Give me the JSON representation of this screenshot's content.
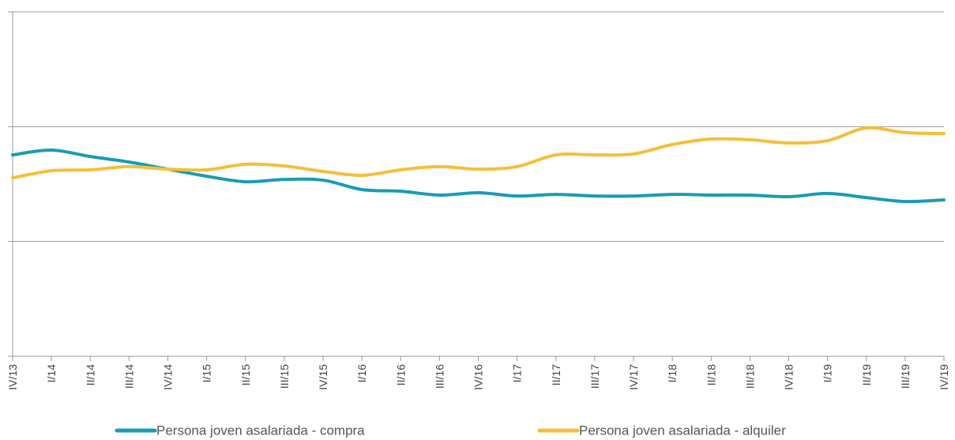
{
  "chart_data": {
    "type": "line",
    "categories": [
      "IV/13",
      "I/14",
      "II/14",
      "III/14",
      "IV/14",
      "I/15",
      "II/15",
      "III/15",
      "IV/15",
      "I/16",
      "II/16",
      "III/16",
      "IV/16",
      "I/17",
      "II/17",
      "III/17",
      "IV/17",
      "I/18",
      "II/18",
      "III/18",
      "IV/18",
      "I/19",
      "II/19",
      "III/19",
      "IV/19"
    ],
    "series": [
      {
        "name": "Persona joven asalariada - compra",
        "color": "#1a9bb5",
        "values": [
          87.7,
          89.8,
          87,
          84.6,
          81.5,
          78.4,
          76,
          77,
          76.7,
          72.6,
          71.9,
          70.2,
          71.2,
          69.8,
          70.5,
          69.8,
          69.8,
          70.5,
          70.2,
          70.2,
          69.5,
          70.9,
          69.1,
          67.4,
          68.1
        ]
      },
      {
        "name": "Persona joven asalariada - alquiler",
        "color": "#f5bf3a",
        "values": [
          77.7,
          80.8,
          81.2,
          82.6,
          81.5,
          81.2,
          83.6,
          82.9,
          80.5,
          78.8,
          81.2,
          82.6,
          81.5,
          82.6,
          87.7,
          87.7,
          88.1,
          92.2,
          94.6,
          94.3,
          92.9,
          93.9,
          99.4,
          97.4,
          97
        ]
      }
    ],
    "ylim": [
      0,
      150
    ],
    "yticks": [
      0,
      50,
      100,
      150
    ],
    "grid": true
  }
}
